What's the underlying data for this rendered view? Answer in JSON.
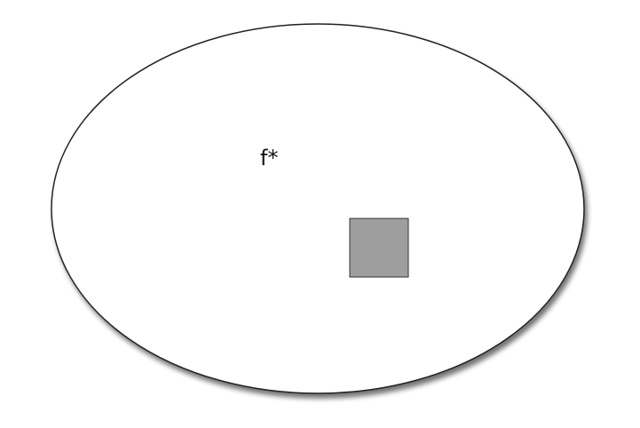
{
  "diagram": {
    "label": "f*",
    "ellipse_fill": "#ffffff",
    "ellipse_stroke": "#222222",
    "square_fill": "#9e9e9e",
    "square_stroke": "#333333"
  }
}
